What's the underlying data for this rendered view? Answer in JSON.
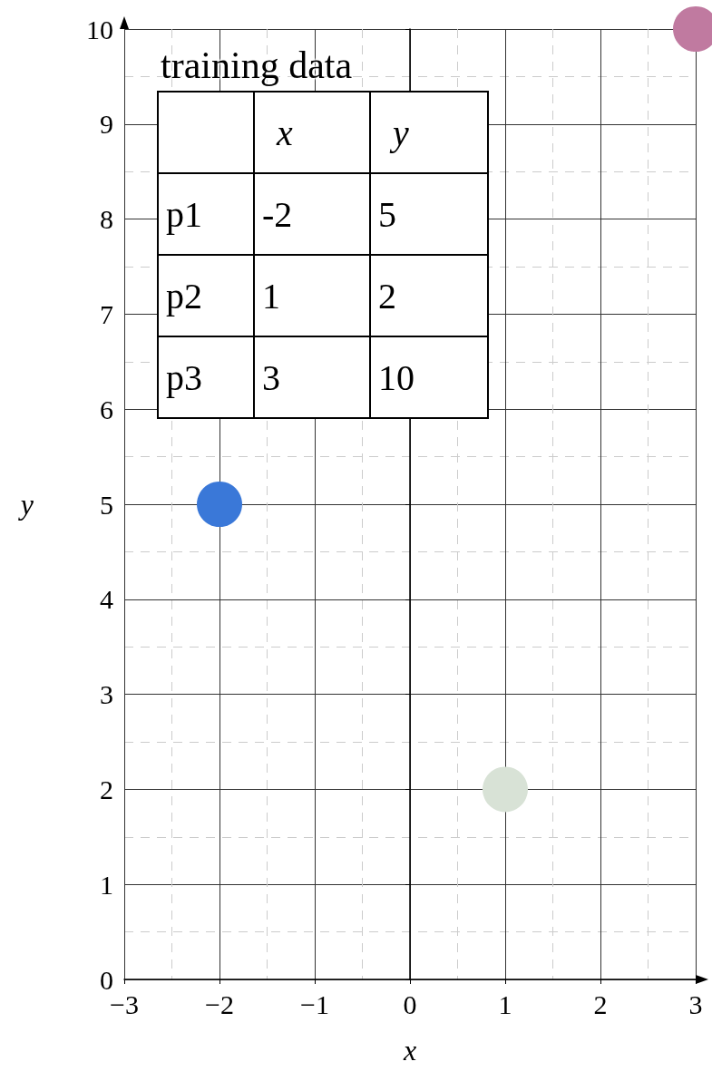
{
  "chart_data": [
    {
      "type": "scatter",
      "xlabel": "x",
      "ylabel": "y",
      "series": [
        {
          "color": "#3a78d8",
          "x": [
            -2
          ],
          "values": [
            5
          ]
        },
        {
          "color": "#d8e2d6",
          "x": [
            1
          ],
          "values": [
            2
          ]
        },
        {
          "color": "#c07aa0",
          "x": [
            3
          ],
          "values": [
            10
          ]
        }
      ],
      "xlim": [
        -3,
        3
      ],
      "ylim": [
        0,
        10
      ],
      "xticks": [
        {
          "value": -3,
          "label": "−3"
        },
        {
          "value": -2,
          "label": "−2"
        },
        {
          "value": -1,
          "label": "−1"
        },
        0,
        1,
        2,
        3
      ],
      "yticks": [
        0,
        1,
        2,
        3,
        4,
        5,
        6,
        7,
        8,
        9,
        10
      ],
      "grid": true,
      "marker": "circle"
    },
    {
      "type": "other",
      "title": "training data",
      "categories": [
        "x",
        "y"
      ],
      "y_categories": [
        "p1",
        "p2",
        "p3"
      ],
      "cell_labels": [
        [
          "-2",
          "5"
        ],
        [
          "1",
          "2"
        ],
        [
          "3",
          "10"
        ]
      ]
    }
  ]
}
